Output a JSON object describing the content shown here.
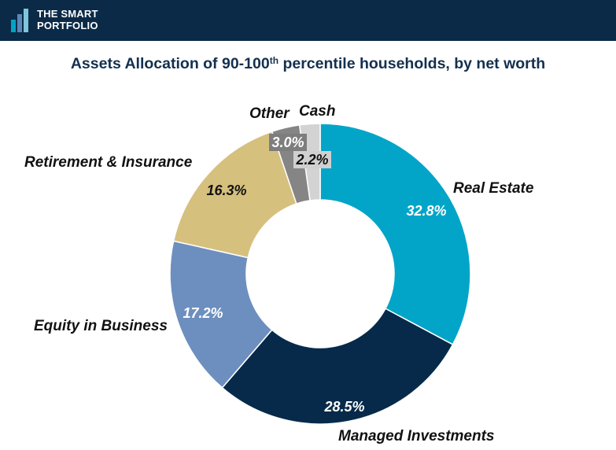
{
  "brand": {
    "line1": "THE SMART",
    "line2": "PORTFOLIO"
  },
  "title": {
    "main": "Assets Allocation of 90-100",
    "sup": "th",
    "rest": " percentile households, by net worth"
  },
  "chart_data": {
    "type": "pie",
    "donut": true,
    "title": "Assets Allocation of 90-100th percentile households, by net worth",
    "categories": [
      "Real Estate",
      "Managed Investments",
      "Equity in Business",
      "Retirement & Insurance",
      "Other",
      "Cash"
    ],
    "values": [
      32.8,
      28.5,
      17.2,
      16.3,
      3.0,
      2.2
    ],
    "value_labels": [
      "32.8%",
      "28.5%",
      "17.2%",
      "16.3%",
      "3.0%",
      "2.2%"
    ],
    "colors": [
      "#02a5c8",
      "#072a4a",
      "#6d8fbf",
      "#d6c07e",
      "#858585",
      "#d3d3d3"
    ],
    "label_colors": [
      "#ffffff",
      "#ffffff",
      "#ffffff",
      "#111111",
      "#ffffff",
      "#111111"
    ],
    "start": "12 o'clock",
    "direction": "clockwise"
  }
}
